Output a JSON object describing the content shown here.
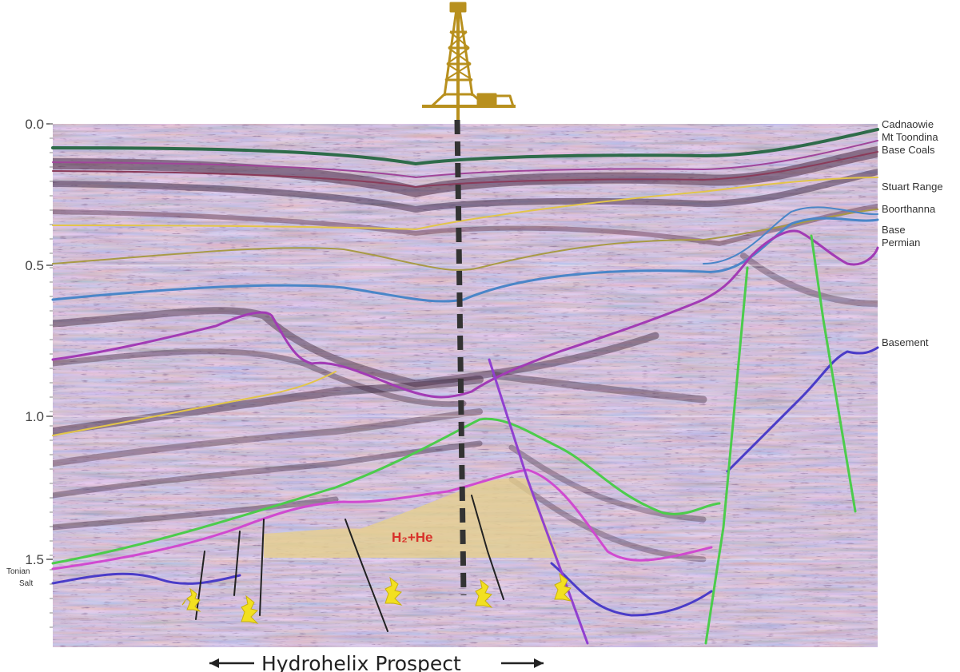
{
  "colors": {
    "rig": "#b8901e",
    "well": "#333333",
    "reservoir": "#e6cf8c",
    "zone_label": "#d8302a",
    "gas_show": "#f2e020"
  },
  "icons": {
    "rig": "drilling-rig-icon",
    "gas_show": "gas-show-icon"
  },
  "time_axis": {
    "ticks": [
      "0.0",
      "0.5",
      "1.0",
      "1.5"
    ]
  },
  "horizons": [
    {
      "label": "Cadnaowie",
      "color": "#2e6b4a"
    },
    {
      "label": "Mt Toondina",
      "color": "#a0459a"
    },
    {
      "label": "Base Coals",
      "color": "#8a3b5a"
    },
    {
      "label": "Stuart Range",
      "color": "#e2c54a"
    },
    {
      "label": "Boorthanna",
      "color": "#a89a45"
    },
    {
      "label": "Base",
      "color": "#4a86c8"
    },
    {
      "label": "Permian",
      "color": "#4a86c8"
    },
    {
      "label": "Basement",
      "color": "#a23bb5"
    }
  ],
  "left_labels": [
    "Tonian",
    "Salt"
  ],
  "zone_label": "H₂+He",
  "prospect": {
    "left_arrow": "←",
    "label": "Hydrohelix Prospect",
    "right_arrow": "→"
  }
}
